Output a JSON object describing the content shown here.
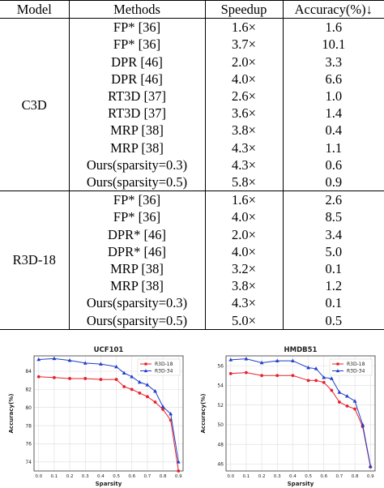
{
  "table": {
    "headers": [
      "Model",
      "Methods",
      "Speedup",
      "Accuracy(%)↓"
    ],
    "groups": [
      {
        "model": "C3D",
        "rows": [
          [
            "FP* [36]",
            "1.6×",
            "1.6"
          ],
          [
            "FP* [36]",
            "3.7×",
            "10.1"
          ],
          [
            "DPR [46]",
            "2.0×",
            "3.3"
          ],
          [
            "DPR [46]",
            "4.0×",
            "6.6"
          ],
          [
            "RT3D [37]",
            "2.6×",
            "1.0"
          ],
          [
            "RT3D [37]",
            "3.6×",
            "1.4"
          ],
          [
            "MRP [38]",
            "3.8×",
            "0.4"
          ],
          [
            "MRP [38]",
            "4.3×",
            "1.1"
          ],
          [
            "Ours(sparsity=0.3)",
            "4.3×",
            "0.6"
          ],
          [
            "Ours(sparsity=0.5)",
            "5.8×",
            "0.9"
          ]
        ]
      },
      {
        "model": "R3D-18",
        "rows": [
          [
            "FP* [36]",
            "1.6×",
            "2.6"
          ],
          [
            "FP* [36]",
            "4.0×",
            "8.5"
          ],
          [
            "DPR* [46]",
            "2.0×",
            "3.4"
          ],
          [
            "DPR* [46]",
            "4.0×",
            "5.0"
          ],
          [
            "MRP [38]",
            "3.2×",
            "0.1"
          ],
          [
            "MRP [38]",
            "3.8×",
            "1.2"
          ],
          [
            "Ours(sparsity=0.3)",
            "4.3×",
            "0.1"
          ],
          [
            "Ours(sparsity=0.5)",
            "5.0×",
            "0.5"
          ]
        ]
      }
    ]
  },
  "chart_data": [
    {
      "type": "line",
      "title": "UCF101",
      "xlabel": "Sparsity",
      "ylabel": "Accuracy(%)",
      "x": [
        0.0,
        0.1,
        0.2,
        0.3,
        0.4,
        0.5,
        0.55,
        0.6,
        0.65,
        0.7,
        0.75,
        0.8,
        0.85,
        0.9
      ],
      "xticks": [
        "0.0",
        "0.1",
        "0.2",
        "0.3",
        "0.4",
        "0.5",
        "0.6",
        "0.7",
        "0.8",
        "0.9"
      ],
      "yticks": [
        "74",
        "76",
        "78",
        "80",
        "82",
        "84"
      ],
      "xlim": [
        -0.03,
        0.93
      ],
      "ylim": [
        73.0,
        85.7
      ],
      "grid": true,
      "legend": "top-right",
      "series": [
        {
          "name": "R3D-18",
          "color": "#e8202a",
          "marker": "circle",
          "values": [
            83.4,
            83.3,
            83.2,
            83.2,
            83.1,
            83.1,
            82.3,
            82.0,
            81.6,
            81.2,
            80.6,
            79.8,
            78.6,
            73.0
          ]
        },
        {
          "name": "R3D-34",
          "color": "#1f3fc8",
          "marker": "triangle",
          "values": [
            85.3,
            85.4,
            85.2,
            84.9,
            84.8,
            84.5,
            83.8,
            83.4,
            82.8,
            82.5,
            81.8,
            80.1,
            79.3,
            74.0
          ]
        }
      ]
    },
    {
      "type": "line",
      "title": "HMDB51",
      "xlabel": "Sparsity",
      "ylabel": "Accuracy(%)",
      "x": [
        0.0,
        0.1,
        0.2,
        0.3,
        0.4,
        0.5,
        0.55,
        0.6,
        0.65,
        0.7,
        0.75,
        0.8,
        0.85,
        0.9
      ],
      "xticks": [
        "0.0",
        "0.1",
        "0.2",
        "0.3",
        "0.4",
        "0.5",
        "0.6",
        "0.7",
        "0.8",
        "0.9"
      ],
      "yticks": [
        "46",
        "48",
        "50",
        "52",
        "54",
        "56"
      ],
      "xlim": [
        -0.03,
        0.93
      ],
      "ylim": [
        45.3,
        57.0
      ],
      "grid": true,
      "legend": "top-right",
      "series": [
        {
          "name": "R3D-18",
          "color": "#e8202a",
          "marker": "circle",
          "values": [
            55.2,
            55.3,
            55.0,
            55.0,
            55.0,
            54.5,
            54.5,
            54.3,
            53.5,
            52.3,
            51.9,
            51.6,
            49.8,
            45.7
          ]
        },
        {
          "name": "R3D-34",
          "color": "#1f3fc8",
          "marker": "triangle",
          "values": [
            56.6,
            56.7,
            56.3,
            56.5,
            56.5,
            55.8,
            55.7,
            54.8,
            54.7,
            53.3,
            52.9,
            52.4,
            50.0,
            45.8
          ]
        }
      ]
    }
  ]
}
